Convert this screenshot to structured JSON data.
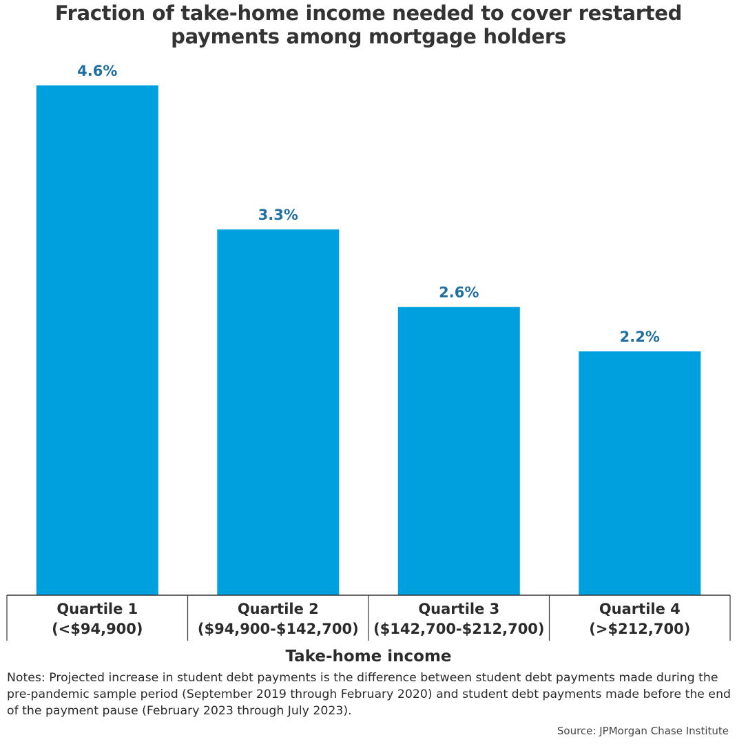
{
  "header": {
    "title": "Fraction of take-home income needed to cover restarted payments among mortgage holders"
  },
  "chart_data": {
    "type": "bar",
    "title": "Fraction of take-home income needed to cover restarted payments among mortgage holders",
    "xlabel": "Take-home income",
    "ylabel": "",
    "categories": [
      [
        "Quartile 1",
        "(<$94,900)"
      ],
      [
        "Quartile 2",
        "($94,900-$142,700)"
      ],
      [
        "Quartile 3",
        "($142,700-$212,700)"
      ],
      [
        "Quartile 4",
        "(>$212,700)"
      ]
    ],
    "values": [
      4.6,
      3.3,
      2.6,
      2.2
    ],
    "value_labels": [
      "4.6%",
      "3.3%",
      "2.6%",
      "2.2%"
    ],
    "ylim": [
      0,
      4.6
    ],
    "grid": false,
    "legend": "none",
    "bar_color": "#00a0df",
    "label_color": "#1f6fa3"
  },
  "footer": {
    "notes": "Notes: Projected increase in student debt payments is the difference between student debt payments made during the pre-pandemic sample period (September 2019 through February 2020) and student debt payments made before the end of the payment pause (February 2023 through July 2023).",
    "source": "Source: JPMorgan Chase Institute"
  }
}
